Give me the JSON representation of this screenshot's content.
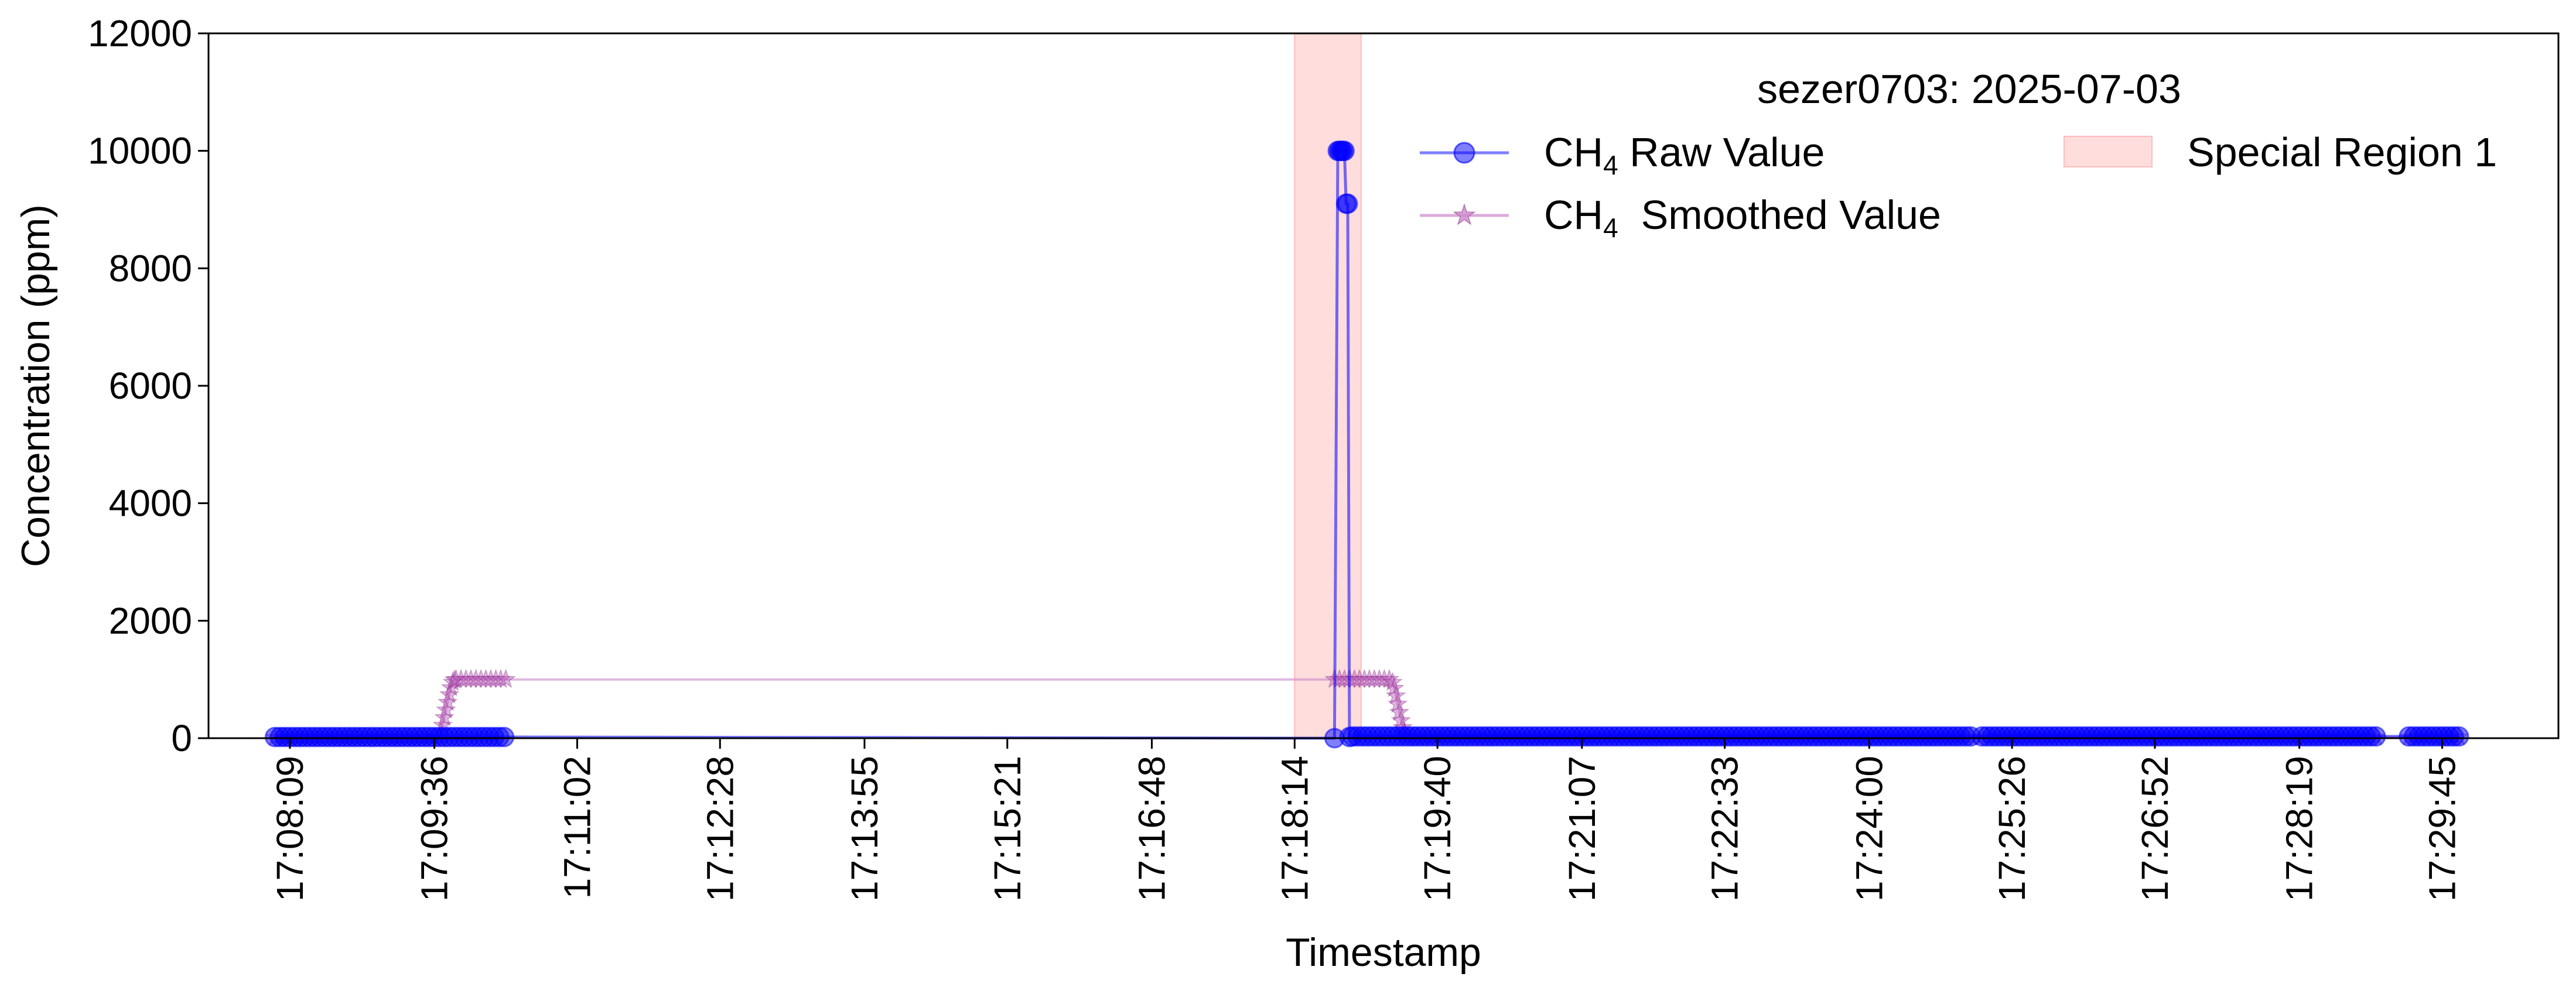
{
  "chart_data": {
    "type": "line",
    "xlabel": "Timestamp",
    "ylabel": "Concentration (ppm)",
    "ylim": [
      0,
      12000
    ],
    "yticks": [
      0,
      2000,
      4000,
      6000,
      8000,
      10000,
      12000
    ],
    "xlim": [
      "17:07:20",
      "17:30:55"
    ],
    "xticks": [
      "17:08:09",
      "17:09:36",
      "17:11:02",
      "17:12:28",
      "17:13:55",
      "17:15:21",
      "17:16:48",
      "17:18:14",
      "17:19:40",
      "17:21:07",
      "17:22:33",
      "17:24:00",
      "17:25:26",
      "17:26:52",
      "17:28:19",
      "17:29:45"
    ],
    "grid": false,
    "legend": {
      "title": "sezer0703: 2025-07-03",
      "placement": "top-right",
      "entries": [
        {
          "prefix": "CH",
          "sub": "4",
          "suffix": " Raw Value"
        },
        {
          "prefix": "CH",
          "sub": "4",
          "suffix": "  Smoothed Value"
        },
        {
          "prefix": "",
          "sub": "",
          "suffix": "Special Region 1"
        }
      ]
    },
    "special_regions": [
      {
        "name": "Special Region 1",
        "x0": "17:18:14",
        "x1": "17:18:54",
        "color": "#ffdddd"
      }
    ],
    "series": [
      {
        "name": "CH4 Raw Value",
        "color": "#0000ff",
        "marker": "circle",
        "segments": [
          {
            "start": "17:08:00",
            "end": "17:10:20",
            "step": 3,
            "value": 20
          },
          {
            "start": "17:18:38",
            "end": "17:18:38",
            "step": 1,
            "value": 0
          },
          {
            "start": "17:18:40",
            "end": "17:18:47",
            "step": 1,
            "values": [
              10000,
              10000,
              10000,
              10000,
              10000,
              9100,
              9100,
              20
            ]
          },
          {
            "start": "17:18:49",
            "end": "17:25:02",
            "step": 3,
            "value": 30
          },
          {
            "start": "17:25:08",
            "end": "17:29:05",
            "step": 3,
            "value": 30
          },
          {
            "start": "17:29:25",
            "end": "17:29:55",
            "step": 3,
            "value": 30
          }
        ]
      },
      {
        "name": "CH4 Smoothed Value",
        "color": "#cc88cc",
        "marker": "star",
        "segments": [
          {
            "start": "17:08:00",
            "end": "17:09:39",
            "step": 3,
            "value": 10
          },
          {
            "start": "17:09:40",
            "end": "17:09:49",
            "step": 1,
            "values": [
              100,
              220,
              350,
              480,
              610,
              740,
              860,
              950,
              990,
              1000
            ]
          },
          {
            "start": "17:09:52",
            "end": "17:10:20",
            "step": 3,
            "value": 1000
          },
          {
            "start": "17:18:38",
            "end": "17:19:12",
            "step": 3,
            "value": 1000
          },
          {
            "start": "17:19:13",
            "end": "17:19:22",
            "step": 1,
            "values": [
              950,
              850,
              720,
              580,
              440,
              300,
              180,
              90,
              40,
              20
            ]
          },
          {
            "start": "17:19:25",
            "end": "17:25:02",
            "step": 3,
            "value": 20
          },
          {
            "start": "17:25:08",
            "end": "17:29:05",
            "step": 3,
            "value": 20
          },
          {
            "start": "17:29:25",
            "end": "17:29:55",
            "step": 3,
            "value": 20
          }
        ]
      }
    ]
  }
}
